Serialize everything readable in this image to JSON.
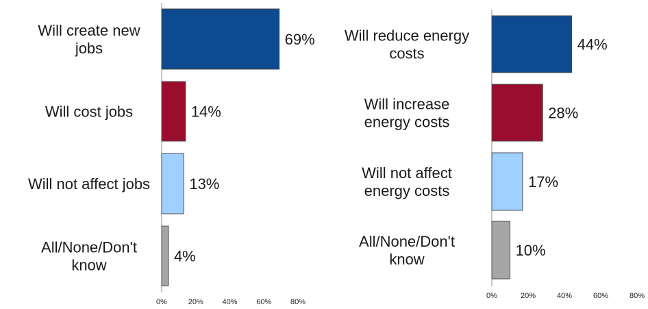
{
  "chart_data": [
    {
      "type": "bar",
      "orientation": "horizontal",
      "categories": [
        "Will create new jobs",
        "Will cost jobs",
        "Will not affect jobs",
        "All/None/Don't know"
      ],
      "values": [
        69,
        14,
        13,
        4
      ],
      "value_labels": [
        "69%",
        "14%",
        "13%",
        "4%"
      ],
      "bar_colors": [
        "#0d4a8f",
        "#9b0d2e",
        "#9fd0ff",
        "#a6a6a6"
      ],
      "xlim": [
        0,
        80
      ],
      "xticks": [
        "0%",
        "20%",
        "40%",
        "60%",
        "80%"
      ],
      "title": "",
      "xlabel": "",
      "ylabel": "",
      "grid": false
    },
    {
      "type": "bar",
      "orientation": "horizontal",
      "categories": [
        "Will reduce energy costs",
        "Will increase energy costs",
        "Will not affect energy costs",
        "All/None/Don't know"
      ],
      "values": [
        44,
        28,
        17,
        10
      ],
      "value_labels": [
        "44%",
        "28%",
        "17%",
        "10%"
      ],
      "bar_colors": [
        "#0d4a8f",
        "#9b0d2e",
        "#9fd0ff",
        "#a6a6a6"
      ],
      "xlim": [
        0,
        80
      ],
      "xticks": [
        "0%",
        "20%",
        "40%",
        "60%",
        "80%"
      ],
      "title": "",
      "xlabel": "",
      "ylabel": "",
      "grid": false
    }
  ]
}
